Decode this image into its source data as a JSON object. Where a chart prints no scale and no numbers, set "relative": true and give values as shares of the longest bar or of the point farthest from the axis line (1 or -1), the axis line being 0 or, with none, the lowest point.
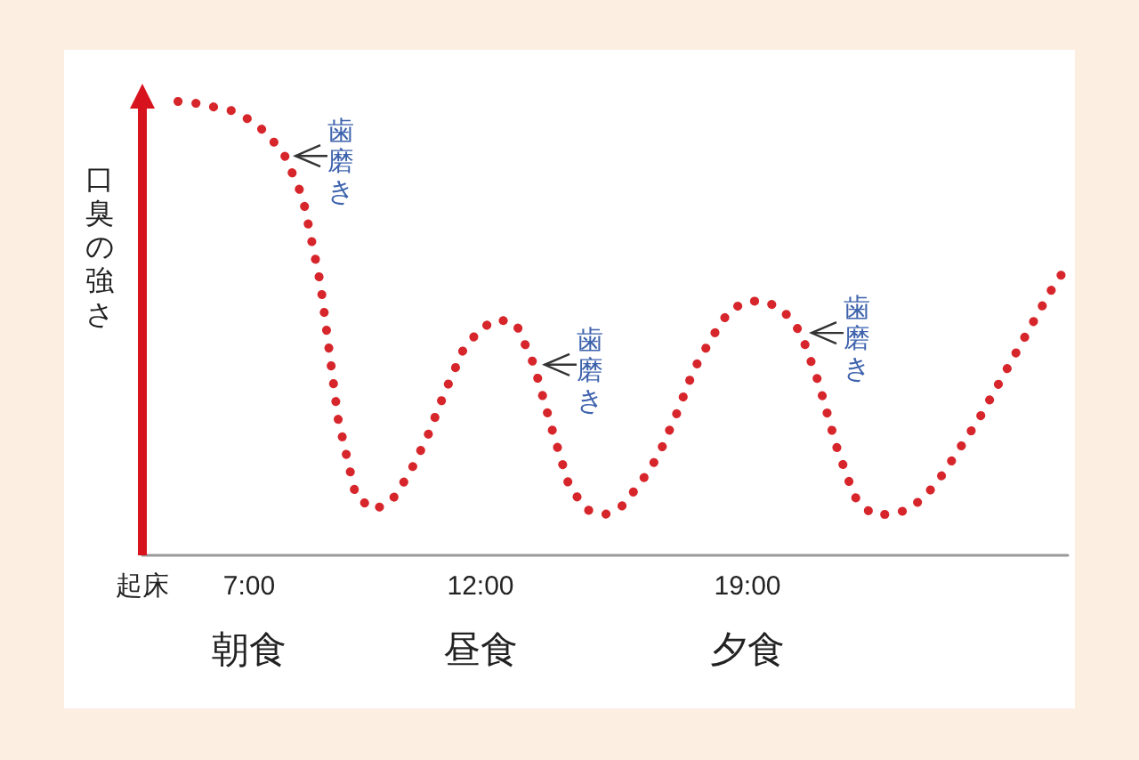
{
  "chart_data": {
    "type": "line",
    "relative": true,
    "ylabel": "口臭の強さ",
    "categories": [
      "起床",
      null,
      null,
      null,
      null,
      null,
      "7:00",
      null,
      null,
      null,
      null,
      null,
      null,
      null,
      null,
      null,
      null,
      null,
      null,
      "12:00",
      null,
      null,
      null,
      null,
      null,
      null,
      null,
      null,
      null,
      null,
      null,
      null,
      null,
      null,
      "19:00",
      null,
      null,
      null,
      null,
      null,
      null,
      null,
      null,
      null,
      null,
      null,
      null,
      null,
      null,
      null,
      null,
      null,
      null
    ],
    "series": [
      {
        "color": "#d7262b",
        "values": [
          null,
          null,
          1.0,
          0.996,
          0.988,
          0.98,
          0.96,
          0.93,
          0.88,
          0.79,
          0.6,
          0.3,
          0.13,
          0.1,
          0.12,
          0.18,
          0.26,
          0.36,
          0.45,
          0.5,
          0.52,
          0.51,
          0.42,
          0.28,
          0.15,
          0.1,
          0.09,
          0.11,
          0.16,
          0.22,
          0.31,
          0.41,
          0.48,
          0.54,
          0.56,
          0.56,
          0.54,
          0.49,
          0.38,
          0.24,
          0.13,
          0.09,
          0.09,
          0.1,
          0.13,
          0.18,
          0.24,
          0.3,
          0.37,
          0.44,
          0.51,
          0.58,
          0.64
        ]
      }
    ],
    "annotations": [
      "歯磨き",
      "歯磨き",
      "歯磨き",
      "朝食",
      "昼食",
      "夕食"
    ],
    "line_style": "dotted",
    "marker": "none"
  }
}
